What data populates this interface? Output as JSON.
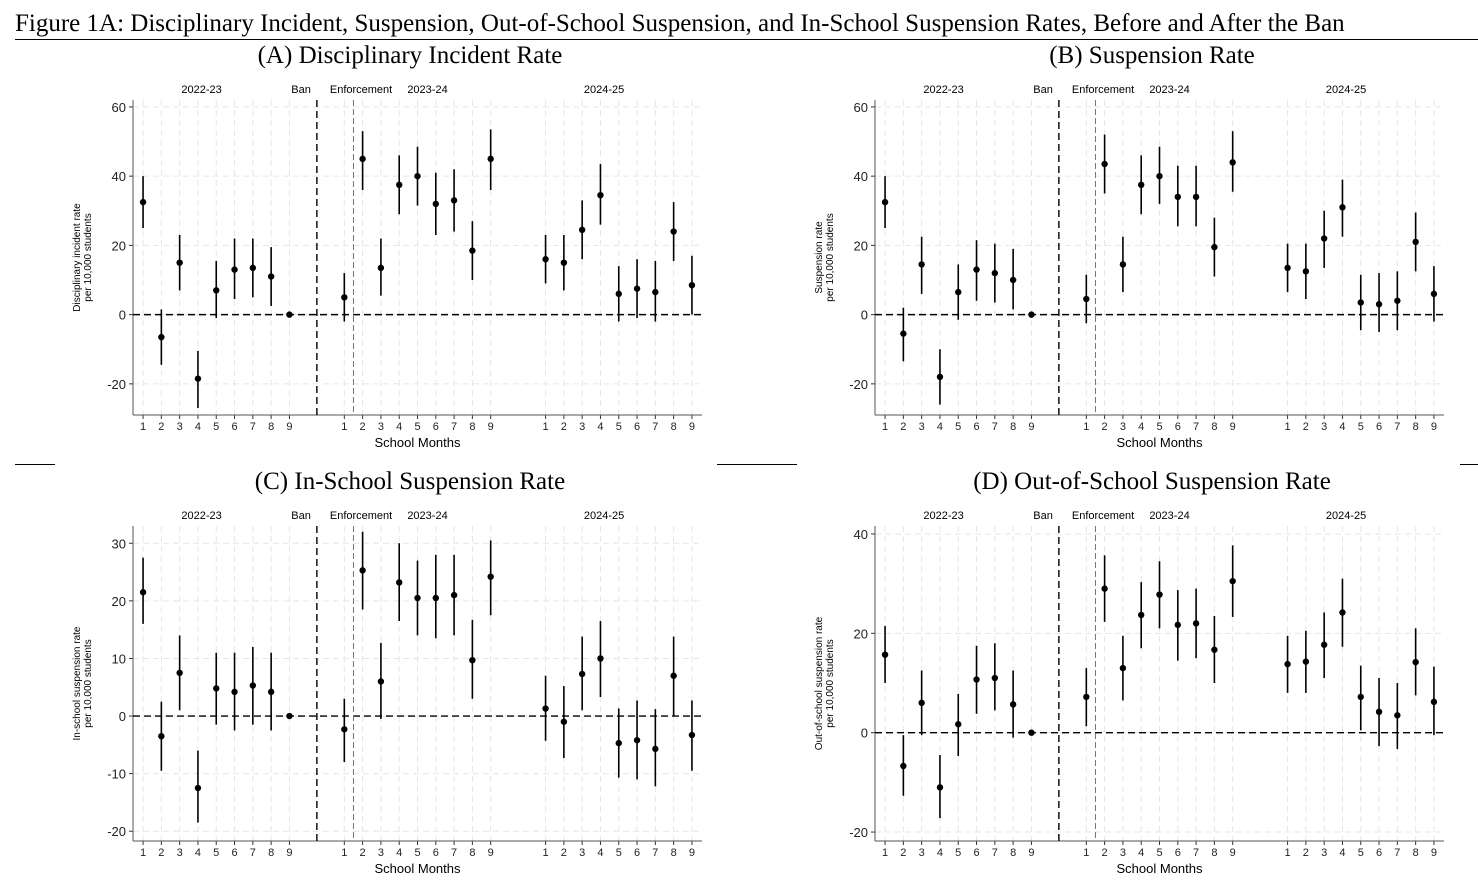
{
  "figure_title": "Figure 1A: Disciplinary Incident, Suspension, Out-of-School Suspension, and In-School Suspension Rates, Before and After the Ban",
  "colors": {
    "point": "#000000",
    "zero_line": "#000000",
    "ban_line": "#000000",
    "enforcement_line": "#e8423f",
    "grid": "#e6e6e6"
  },
  "chart_data": [
    {
      "type": "scatter",
      "title": "(A) Disciplinary Incident Rate",
      "ylabel": "Disciplinary incident rate\nper 10,000 students",
      "xlabel": "School Months",
      "ylim": [
        -29,
        62
      ],
      "yticks": [
        -20,
        0,
        20,
        40,
        60
      ],
      "grid": true,
      "annotations": {
        "ban": "Ban",
        "enforcement": "Enforcement"
      },
      "months": [
        "1",
        "2",
        "3",
        "4",
        "5",
        "6",
        "7",
        "8",
        "9"
      ],
      "series": [
        {
          "name": "2022-23",
          "estimate": [
            32.5,
            -6.5,
            15,
            -18.5,
            7,
            13,
            13.5,
            11,
            0
          ],
          "ci_low": [
            25,
            -14.5,
            7,
            -27,
            -1,
            4.5,
            5,
            2.5,
            0
          ],
          "ci_high": [
            40,
            1.5,
            23,
            -10.5,
            15.5,
            22,
            22,
            19.5,
            0
          ]
        },
        {
          "name": "2023-24",
          "estimate": [
            5,
            45,
            13.5,
            37.5,
            40,
            32,
            33,
            18.5,
            45
          ],
          "ci_low": [
            -2,
            36,
            5.5,
            29,
            31.5,
            23,
            24,
            10,
            36
          ],
          "ci_high": [
            12,
            53,
            22,
            46,
            48.5,
            41,
            42,
            27,
            53.5
          ]
        },
        {
          "name": "2024-25",
          "estimate": [
            16,
            15,
            24.5,
            34.5,
            6,
            7.5,
            6.5,
            24,
            8.5
          ],
          "ci_low": [
            9,
            7,
            16,
            26,
            -2,
            -1,
            -2,
            15.5,
            0
          ],
          "ci_high": [
            23,
            23,
            33,
            43.5,
            14,
            16,
            15.5,
            32.5,
            17
          ]
        }
      ]
    },
    {
      "type": "scatter",
      "title": "(B) Suspension Rate",
      "ylabel": "Suspension rate\nper 10,000 students",
      "xlabel": "School Months",
      "ylim": [
        -29,
        62
      ],
      "yticks": [
        -20,
        0,
        20,
        40,
        60
      ],
      "grid": true,
      "annotations": {
        "ban": "Ban",
        "enforcement": "Enforcement"
      },
      "months": [
        "1",
        "2",
        "3",
        "4",
        "5",
        "6",
        "7",
        "8",
        "9"
      ],
      "series": [
        {
          "name": "2022-23",
          "estimate": [
            32.5,
            -5.5,
            14.5,
            -18,
            6.5,
            13,
            12,
            10,
            0
          ],
          "ci_low": [
            25,
            -13.5,
            6,
            -26,
            -1.5,
            4,
            3.5,
            1.5,
            0
          ],
          "ci_high": [
            40,
            2,
            22.5,
            -10,
            14.5,
            21.5,
            20.5,
            19,
            0
          ]
        },
        {
          "name": "2023-24",
          "estimate": [
            4.5,
            43.5,
            14.5,
            37.5,
            40,
            34,
            34,
            19.5,
            44
          ],
          "ci_low": [
            -2.5,
            35,
            6.5,
            29,
            32,
            25.5,
            25.5,
            11,
            35.5
          ],
          "ci_high": [
            11.5,
            52,
            22.5,
            46,
            48.5,
            43,
            43,
            28,
            53
          ]
        },
        {
          "name": "2024-25",
          "estimate": [
            13.5,
            12.5,
            22,
            31,
            3.5,
            3,
            4,
            21,
            6
          ],
          "ci_low": [
            6.5,
            4.5,
            13.5,
            22.5,
            -4.5,
            -5,
            -4.5,
            12.5,
            -2
          ],
          "ci_high": [
            20.5,
            20.5,
            30,
            39,
            11.5,
            12,
            12.5,
            29.5,
            14
          ]
        }
      ]
    },
    {
      "type": "scatter",
      "title": "(C) In-School Suspension Rate",
      "ylabel": "In-school suspension rate\nper 10,000 students",
      "xlabel": "School Months",
      "ylim": [
        -21.7,
        33
      ],
      "yticks": [
        -20,
        -10,
        0,
        10,
        20,
        30
      ],
      "grid": true,
      "annotations": {
        "ban": "Ban",
        "enforcement": "Enforcement"
      },
      "months": [
        "1",
        "2",
        "3",
        "4",
        "5",
        "6",
        "7",
        "8",
        "9"
      ],
      "series": [
        {
          "name": "2022-23",
          "estimate": [
            21.5,
            -3.5,
            7.5,
            -12.5,
            4.8,
            4.2,
            5.3,
            4.2,
            0
          ],
          "ci_low": [
            16,
            -9.5,
            1,
            -18.5,
            -1.5,
            -2.5,
            -1.5,
            -2.5,
            0
          ],
          "ci_high": [
            27.5,
            2.5,
            14,
            -6,
            11,
            11,
            12,
            11,
            0
          ]
        },
        {
          "name": "2023-24",
          "estimate": [
            -2.3,
            25.3,
            6,
            23.2,
            20.5,
            20.5,
            21,
            9.7,
            24.2
          ],
          "ci_low": [
            -8,
            18.5,
            -0.5,
            16.5,
            14,
            13.5,
            14,
            3,
            17.5
          ],
          "ci_high": [
            3,
            32,
            12.7,
            30,
            27,
            28,
            28,
            16.7,
            30.5
          ]
        },
        {
          "name": "2024-25",
          "estimate": [
            1.3,
            -1,
            7.3,
            10,
            -4.7,
            -4.2,
            -5.7,
            7,
            -3.3
          ],
          "ci_low": [
            -4.3,
            -7.3,
            1,
            3.3,
            -10.7,
            -11,
            -12.2,
            0,
            -9.5
          ],
          "ci_high": [
            7,
            5.2,
            13.8,
            16.5,
            1.3,
            2.7,
            1.2,
            13.8,
            2.7
          ]
        }
      ]
    },
    {
      "type": "scatter",
      "title": "(D) Out-of-School Suspension Rate",
      "ylabel": "Out-of-school suspension rate\nper 10,000 students",
      "xlabel": "School Months",
      "ylim": [
        -21.8,
        41.6
      ],
      "yticks": [
        -20,
        0,
        20,
        40
      ],
      "grid": true,
      "annotations": {
        "ban": "Ban",
        "enforcement": "Enforcement"
      },
      "months": [
        "1",
        "2",
        "3",
        "4",
        "5",
        "6",
        "7",
        "8",
        "9"
      ],
      "series": [
        {
          "name": "2022-23",
          "estimate": [
            15.7,
            -6.7,
            6,
            -11,
            1.7,
            10.7,
            11,
            5.7,
            0
          ],
          "ci_low": [
            10,
            -12.7,
            -0.5,
            -17.2,
            -4.7,
            3.8,
            4.5,
            -1,
            0
          ],
          "ci_high": [
            21.5,
            -0.5,
            12.5,
            -4.5,
            7.8,
            17.5,
            18,
            12.5,
            0
          ]
        },
        {
          "name": "2023-24",
          "estimate": [
            7.2,
            29,
            13,
            23.7,
            27.8,
            21.7,
            22,
            16.7,
            30.5
          ],
          "ci_low": [
            1.3,
            22.3,
            6.5,
            17,
            21,
            14.5,
            15,
            10,
            23.3
          ],
          "ci_high": [
            13,
            35.7,
            19.5,
            30.3,
            34.5,
            28.7,
            29,
            23.5,
            37.7
          ]
        },
        {
          "name": "2024-25",
          "estimate": [
            13.8,
            14.3,
            17.7,
            24.2,
            7.2,
            4.2,
            3.5,
            14.2,
            6.2
          ],
          "ci_low": [
            8,
            8,
            11,
            17.3,
            0.5,
            -2.7,
            -3.3,
            7.5,
            -0.5
          ],
          "ci_high": [
            19.5,
            20.5,
            24.2,
            31,
            13.5,
            11,
            10,
            21,
            13.3
          ]
        }
      ]
    }
  ]
}
